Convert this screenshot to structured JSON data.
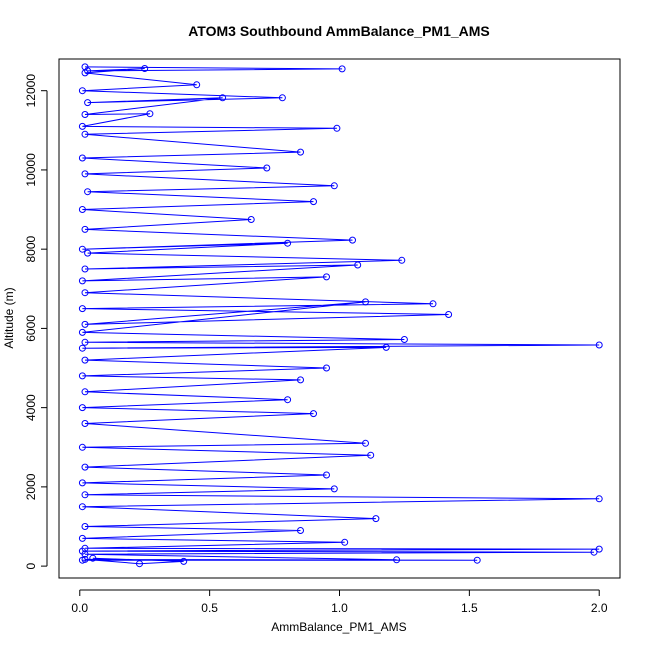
{
  "chart_data": {
    "type": "line",
    "title": "ATOM3 Southbound AmmBalance_PM1_AMS",
    "xlabel": "AmmBalance_PM1_AMS",
    "ylabel": "Altitude (m)",
    "xlim": [
      -0.08,
      2.08
    ],
    "ylim": [
      -300,
      12800
    ],
    "x_ticks": [
      0.0,
      0.5,
      1.0,
      1.5,
      2.0
    ],
    "x_tick_labels": [
      "0.0",
      "0.5",
      "1.0",
      "1.5",
      "2.0"
    ],
    "y_ticks": [
      0,
      2000,
      4000,
      6000,
      8000,
      10000,
      12000
    ],
    "y_tick_labels": [
      "0",
      "2000",
      "4000",
      "6000",
      "8000",
      "10000",
      "12000"
    ],
    "grid": false,
    "legend": "none",
    "marker": "open-circle",
    "series_color": "#0000ff",
    "series": [
      {
        "points": [
          [
            0.02,
            12600
          ],
          [
            1.01,
            12550
          ],
          [
            0.03,
            12500
          ],
          [
            0.25,
            12560
          ],
          [
            0.02,
            12450
          ],
          [
            0.45,
            12150
          ],
          [
            0.01,
            12000
          ],
          [
            0.78,
            11820
          ],
          [
            0.03,
            11700
          ],
          [
            0.55,
            11820
          ],
          [
            0.02,
            11400
          ],
          [
            0.27,
            11420
          ],
          [
            0.01,
            11100
          ],
          [
            0.99,
            11050
          ],
          [
            0.02,
            10900
          ],
          [
            0.85,
            10450
          ],
          [
            0.01,
            10300
          ],
          [
            0.72,
            10050
          ],
          [
            0.02,
            9900
          ],
          [
            0.98,
            9600
          ],
          [
            0.03,
            9450
          ],
          [
            0.9,
            9200
          ],
          [
            0.01,
            9000
          ],
          [
            0.66,
            8750
          ],
          [
            0.02,
            8500
          ],
          [
            1.05,
            8230
          ],
          [
            0.01,
            8000
          ],
          [
            0.8,
            8150
          ],
          [
            0.03,
            7900
          ],
          [
            1.24,
            7720
          ],
          [
            0.02,
            7500
          ],
          [
            1.07,
            7600
          ],
          [
            0.01,
            7200
          ],
          [
            0.95,
            7300
          ],
          [
            0.02,
            6900
          ],
          [
            1.36,
            6620
          ],
          [
            0.01,
            6500
          ],
          [
            1.42,
            6350
          ],
          [
            0.02,
            6100
          ],
          [
            1.1,
            6670
          ],
          [
            0.01,
            5900
          ],
          [
            1.25,
            5720
          ],
          [
            0.02,
            5650
          ],
          [
            2.0,
            5580
          ],
          [
            0.01,
            5500
          ],
          [
            1.18,
            5520
          ],
          [
            0.02,
            5200
          ],
          [
            0.95,
            5000
          ],
          [
            0.01,
            4800
          ],
          [
            0.85,
            4700
          ],
          [
            0.02,
            4400
          ],
          [
            0.8,
            4200
          ],
          [
            0.01,
            4000
          ],
          [
            0.9,
            3850
          ],
          [
            0.02,
            3600
          ],
          [
            1.1,
            3100
          ],
          [
            0.01,
            3000
          ],
          [
            1.12,
            2800
          ],
          [
            0.02,
            2500
          ],
          [
            0.95,
            2300
          ],
          [
            0.01,
            2100
          ],
          [
            0.98,
            1950
          ],
          [
            0.02,
            1800
          ],
          [
            2.0,
            1700
          ],
          [
            0.01,
            1500
          ],
          [
            1.14,
            1200
          ],
          [
            0.02,
            1000
          ],
          [
            0.85,
            900
          ],
          [
            0.01,
            700
          ],
          [
            1.02,
            600
          ],
          [
            0.02,
            450
          ],
          [
            2.0,
            430
          ],
          [
            0.01,
            380
          ],
          [
            1.98,
            350
          ],
          [
            0.02,
            300
          ],
          [
            1.22,
            160
          ],
          [
            0.01,
            150
          ],
          [
            1.53,
            150
          ],
          [
            0.02,
            170
          ],
          [
            0.23,
            60
          ],
          [
            0.4,
            120
          ],
          [
            0.05,
            200
          ]
        ]
      }
    ]
  }
}
